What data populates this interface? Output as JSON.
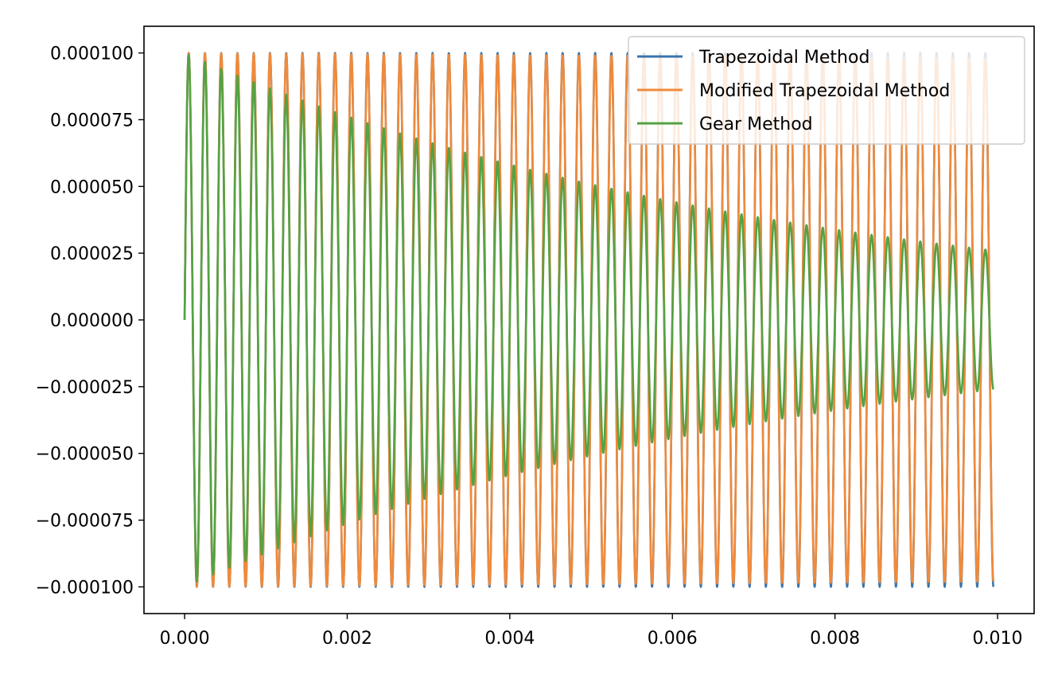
{
  "chart_data": {
    "type": "line",
    "title": "",
    "xlabel": "",
    "ylabel": "",
    "xlim": [
      -0.0005,
      0.01045
    ],
    "ylim": [
      -0.00011,
      0.00011
    ],
    "x_ticks": [
      0.0,
      0.002,
      0.004,
      0.006,
      0.008,
      0.01
    ],
    "x_tick_labels": [
      "0.000",
      "0.002",
      "0.004",
      "0.006",
      "0.008",
      "0.010"
    ],
    "y_ticks": [
      0.0001,
      7.5e-05,
      5e-05,
      2.5e-05,
      0.0,
      -2.5e-05,
      -5e-05,
      -7.5e-05,
      -0.0001
    ],
    "y_tick_labels": [
      "0.000100",
      "0.000075",
      "0.000050",
      "0.000025",
      "0.000000",
      "−0.000025",
      "−0.000050",
      "−0.000075",
      "−0.000100"
    ],
    "grid": false,
    "legend_position": "top-right",
    "x_range": [
      0.0,
      0.00995
    ],
    "frequency_hz": 5000,
    "series": [
      {
        "name": "Trapezoidal Method",
        "color": "#3a75ad",
        "amplitude": 0.0001,
        "final_amplitude": 0.0001,
        "start_value": 0.0
      },
      {
        "name": "Modified Trapezoidal Method",
        "color": "#f08a3b",
        "amplitude": 0.0001,
        "final_amplitude": 9.8e-05,
        "start_value": 0.0
      },
      {
        "name": "Gear Method",
        "color": "#55a244",
        "amplitude": 0.0001,
        "final_amplitude": 2.6e-05,
        "start_value": 0.0
      }
    ]
  }
}
